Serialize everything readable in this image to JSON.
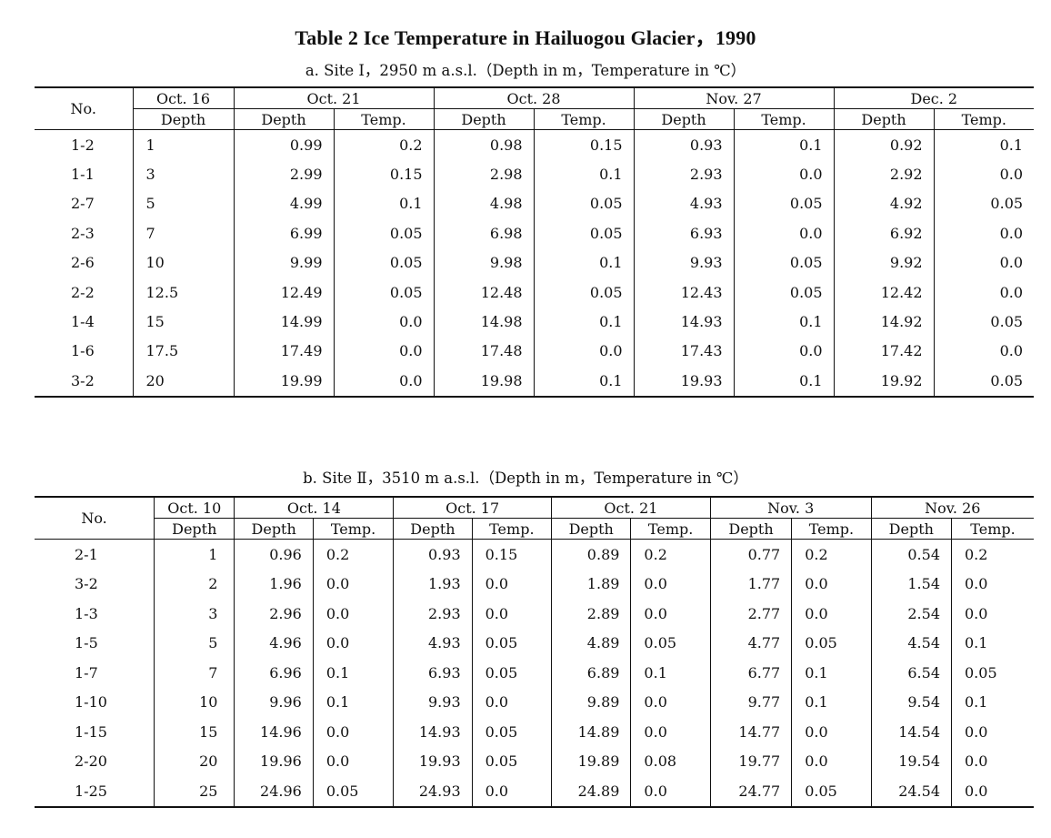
{
  "title": "Table 2   Ice Temperature in Hailuogou Glacier，1990",
  "table_a": {
    "subtitle": "a.  Site Ⅰ，2950 m a.s.l.（Depth in m，Temperature in ℃）",
    "no_label": "No.",
    "first_date": "Oct. 16",
    "first_col": "Depth",
    "dates": [
      "Oct. 21",
      "Oct. 28",
      "Nov. 27",
      "Dec. 2"
    ],
    "depth_label": "Depth",
    "temp_label": "Temp.",
    "rows": [
      [
        "1-2",
        "1",
        "0.99",
        "0.2",
        "0.98",
        "0.15",
        "0.93",
        "0.1",
        "0.92",
        "0.1"
      ],
      [
        "1-1",
        "3",
        "2.99",
        "0.15",
        "2.98",
        "0.1",
        "2.93",
        "0.0",
        "2.92",
        "0.0"
      ],
      [
        "2-7",
        "5",
        "4.99",
        "0.1",
        "4.98",
        "0.05",
        "4.93",
        "0.05",
        "4.92",
        "0.05"
      ],
      [
        "2-3",
        "7",
        "6.99",
        "0.05",
        "6.98",
        "0.05",
        "6.93",
        "0.0",
        "6.92",
        "0.0"
      ],
      [
        "2-6",
        "10",
        "9.99",
        "0.05",
        "9.98",
        "0.1",
        "9.93",
        "0.05",
        "9.92",
        "0.0"
      ],
      [
        "2-2",
        "12.5",
        "12.49",
        "0.05",
        "12.48",
        "0.05",
        "12.43",
        "0.05",
        "12.42",
        "0.0"
      ],
      [
        "1-4",
        "15",
        "14.99",
        "0.0",
        "14.98",
        "0.1",
        "14.93",
        "0.1",
        "14.92",
        "0.05"
      ],
      [
        "1-6",
        "17.5",
        "17.49",
        "0.0",
        "17.48",
        "0.0",
        "17.43",
        "0.0",
        "17.42",
        "0.0"
      ],
      [
        "3-2",
        "20",
        "19.99",
        "0.0",
        "19.98",
        "0.1",
        "19.93",
        "0.1",
        "19.92",
        "0.05"
      ]
    ]
  },
  "table_b": {
    "subtitle": "b.    Site Ⅱ，3510 m a.s.l.（Depth in m，Temperature in ℃）",
    "no_label": "No.",
    "first_date": "Oct. 10",
    "first_col": "Depth",
    "dates": [
      "Oct. 14",
      "Oct. 17",
      "Oct. 21",
      "Nov. 3",
      "Nov. 26"
    ],
    "depth_label": "Depth",
    "temp_label": "Temp.",
    "rows": [
      [
        "2-1",
        "1",
        "0.96",
        "0.2",
        "0.93",
        "0.15",
        "0.89",
        "0.2",
        "0.77",
        "0.2",
        "0.54",
        "0.2"
      ],
      [
        "3-2",
        "2",
        "1.96",
        "0.0",
        "1.93",
        "0.0",
        "1.89",
        "0.0",
        "1.77",
        "0.0",
        "1.54",
        "0.0"
      ],
      [
        "1-3",
        "3",
        "2.96",
        "0.0",
        "2.93",
        "0.0",
        "2.89",
        "0.0",
        "2.77",
        "0.0",
        "2.54",
        "0.0"
      ],
      [
        "1-5",
        "5",
        "4.96",
        "0.0",
        "4.93",
        "0.05",
        "4.89",
        "0.05",
        "4.77",
        "0.05",
        "4.54",
        "0.1"
      ],
      [
        "1-7",
        "7",
        "6.96",
        "0.1",
        "6.93",
        "0.05",
        "6.89",
        "0.1",
        "6.77",
        "0.1",
        "6.54",
        "0.05"
      ],
      [
        "1-10",
        "10",
        "9.96",
        "0.1",
        "9.93",
        "0.0",
        "9.89",
        "0.0",
        "9.77",
        "0.1",
        "9.54",
        "0.1"
      ],
      [
        "1-15",
        "15",
        "14.96",
        "0.0",
        "14.93",
        "0.05",
        "14.89",
        "0.0",
        "14.77",
        "0.0",
        "14.54",
        "0.0"
      ],
      [
        "2-20",
        "20",
        "19.96",
        "0.0",
        "19.93",
        "0.05",
        "19.89",
        "0.08",
        "19.77",
        "0.0",
        "19.54",
        "0.0"
      ],
      [
        "1-25",
        "25",
        "24.96",
        "0.05",
        "24.93",
        "0.0",
        "24.89",
        "0.0",
        "24.77",
        "0.05",
        "24.54",
        "0.0"
      ]
    ]
  }
}
